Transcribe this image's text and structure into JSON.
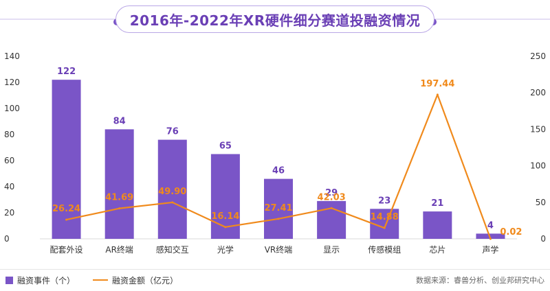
{
  "chart_data": {
    "type": "bar+line",
    "title": "2016年-2022年XR硬件细分赛道投融资情况",
    "categories": [
      "配套外设",
      "AR终端",
      "感知交互",
      "光学",
      "VR终端",
      "显示",
      "传感模组",
      "芯片",
      "声学"
    ],
    "series": [
      {
        "name": "融资事件（个）",
        "type": "bar",
        "axis": "left",
        "color": "#7a55c7",
        "values": [
          122,
          84,
          76,
          65,
          46,
          29,
          23,
          21,
          4
        ],
        "labels": [
          "122",
          "84",
          "76",
          "65",
          "46",
          "29",
          "23",
          "21",
          "4"
        ]
      },
      {
        "name": "融资金额（亿元）",
        "type": "line",
        "axis": "right",
        "color": "#f08a1c",
        "values": [
          26.24,
          41.69,
          49.9,
          16.14,
          27.41,
          42.03,
          14.88,
          197.44,
          0.02
        ],
        "labels": [
          "26.24",
          "41.69",
          "49.90",
          "16.14",
          "27.41",
          "42.03",
          "14.88",
          "197.44",
          "0.02"
        ]
      }
    ],
    "y_left": {
      "min": 0,
      "max": 140,
      "ticks": [
        "0",
        "20",
        "40",
        "60",
        "80",
        "100",
        "120",
        "140"
      ]
    },
    "y_right": {
      "min": 0,
      "max": 250,
      "ticks": [
        "0",
        "50",
        "100",
        "150",
        "200",
        "250"
      ]
    },
    "grid": false,
    "legend": "bottom-left"
  },
  "legend": {
    "bar_label": "融资事件（个）",
    "line_label": "融资金额（亿元）"
  },
  "source": "数据来源：睿兽分析、创业邦研究中心",
  "colors": {
    "bar": "#7a55c7",
    "line": "#f08a1c",
    "title": "#6a3fb5",
    "bar_label": "#6a3fb5",
    "line_label": "#f08a1c"
  }
}
